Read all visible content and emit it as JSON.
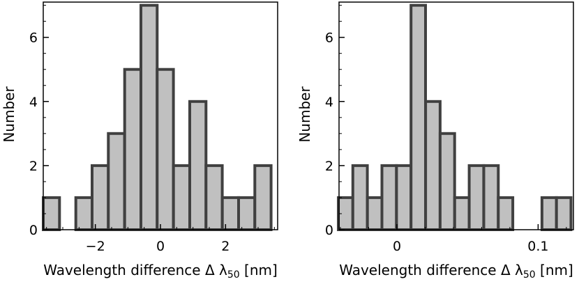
{
  "colors": {
    "bar_fill": "#c0c0c0",
    "bar_stroke": "#404040",
    "axis": "#000000",
    "background": "#ffffff"
  },
  "chart_data": [
    {
      "type": "bar",
      "title": "",
      "xlabel": "Wavelength difference  Δ λ50 [nm]",
      "xlabel_parts": {
        "main": "Wavelength difference  Δ λ",
        "sub": "50",
        "unit": " [nm]"
      },
      "ylabel": "Number",
      "xlim": [
        -3.6,
        3.6
      ],
      "ylim": [
        0,
        7.1
      ],
      "xticks": [
        -2,
        0,
        2
      ],
      "xtick_labels": [
        "−2",
        "0",
        "2"
      ],
      "yticks": [
        0,
        2,
        4,
        6
      ],
      "ytick_labels": [
        "0",
        "2",
        "4",
        "6"
      ],
      "bin_width": 0.5,
      "bin_left_edges": [
        -3.6,
        -3.1,
        -2.6,
        -2.1,
        -1.6,
        -1.1,
        -0.6,
        -0.1,
        0.4,
        0.9,
        1.4,
        1.9,
        2.4,
        2.9
      ],
      "values": [
        1,
        0,
        1,
        2,
        3,
        5,
        7,
        5,
        2,
        4,
        2,
        1,
        1,
        2
      ],
      "grid": false,
      "legend": "none"
    },
    {
      "type": "bar",
      "title": "",
      "xlabel": "Wavelength difference  Δ λ50 [nm]",
      "xlabel_parts": {
        "main": "Wavelength difference  Δ λ",
        "sub": "50",
        "unit": " [nm]"
      },
      "ylabel": "Number",
      "xlim": [
        -0.041,
        0.125
      ],
      "ylim": [
        0,
        7.1
      ],
      "xticks": [
        0,
        0.1
      ],
      "xtick_labels": [
        "0",
        "0.1"
      ],
      "yticks": [
        0,
        2,
        4,
        6
      ],
      "ytick_labels": [
        "0",
        "2",
        "4",
        "6"
      ],
      "bin_width": 0.0103,
      "bin_left_edges": [
        -0.0415,
        -0.0312,
        -0.0209,
        -0.0106,
        -0.0003,
        0.01,
        0.0203,
        0.0306,
        0.0409,
        0.0512,
        0.0615,
        0.0718,
        0.0821,
        0.0924,
        0.1027,
        0.113
      ],
      "values": [
        1,
        2,
        1,
        2,
        2,
        7,
        4,
        3,
        1,
        2,
        2,
        1,
        0,
        0,
        1,
        1
      ],
      "grid": false,
      "legend": "none"
    }
  ]
}
